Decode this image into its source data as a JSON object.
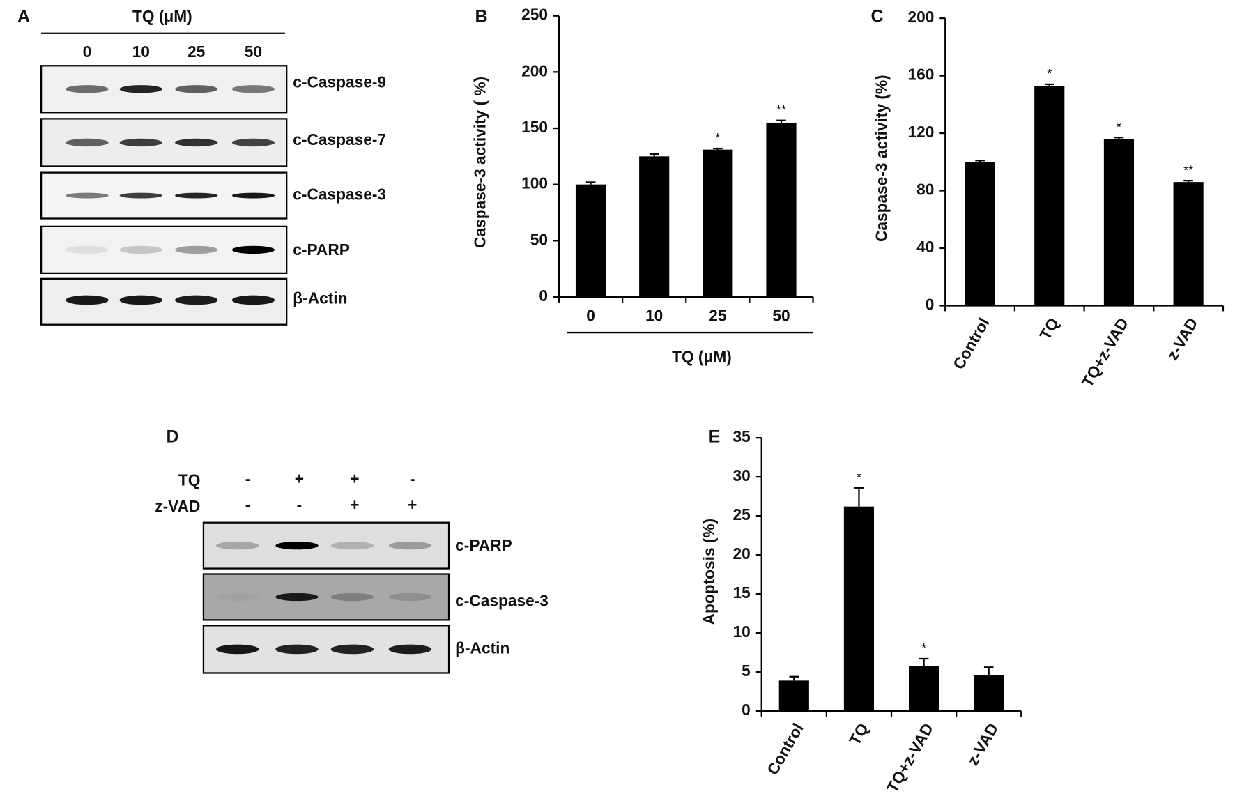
{
  "chart_data": [
    {
      "type": "bar",
      "panel": "B",
      "y_label": "Caspase-3 activity ( %)",
      "x_label": "TQ  (μM)",
      "categories": [
        "0",
        "10",
        "25",
        "50"
      ],
      "values": [
        100,
        125,
        131,
        155
      ],
      "errors": [
        2,
        2,
        1,
        2
      ],
      "annotations": [
        null,
        null,
        "*",
        "**"
      ],
      "color": "#000000",
      "ylim": [
        0,
        250
      ],
      "yticks": [
        0,
        50,
        100,
        150,
        200,
        250
      ]
    },
    {
      "type": "bar",
      "panel": "C",
      "y_label": "Caspase-3 activity  (%)",
      "categories": [
        "Control",
        "TQ",
        "TQ+z-VAD",
        "z-VAD"
      ],
      "values": [
        100,
        153,
        116,
        86
      ],
      "errors": [
        1,
        1,
        1,
        1
      ],
      "annotations": [
        null,
        "*",
        "*",
        "**"
      ],
      "color": "#000000",
      "ylim": [
        0,
        200
      ],
      "yticks": [
        0,
        40,
        80,
        120,
        160,
        200
      ]
    },
    {
      "type": "bar",
      "panel": "E",
      "y_label": "Apoptosis (%)",
      "categories": [
        "Control",
        "TQ",
        "TQ+z-VAD",
        "z-VAD"
      ],
      "values": [
        3.9,
        26.2,
        5.8,
        4.6
      ],
      "errors": [
        0.5,
        2.4,
        0.9,
        1.0
      ],
      "annotations": [
        null,
        "*",
        "*",
        null
      ],
      "color": "#000000",
      "ylim": [
        0,
        35
      ],
      "yticks": [
        0,
        5,
        10,
        15,
        20,
        25,
        30,
        35
      ]
    }
  ],
  "blots": {
    "A": {
      "panel": "A",
      "header": "TQ (μM)",
      "lanes": [
        "0",
        "10",
        "25",
        "50"
      ],
      "rows": [
        "c-Caspase-9",
        "c-Caspase-7",
        "c-Caspase-3",
        "c-PARP",
        "β-Actin"
      ]
    },
    "D": {
      "panel": "D",
      "treatments": [
        {
          "name": "TQ",
          "signs": [
            "-",
            "+",
            "+",
            "-"
          ]
        },
        {
          "name": "z-VAD",
          "signs": [
            "-",
            "-",
            "+",
            "+"
          ]
        }
      ],
      "rows": [
        "c-PARP",
        "c-Caspase-3",
        "β-Actin"
      ]
    }
  }
}
